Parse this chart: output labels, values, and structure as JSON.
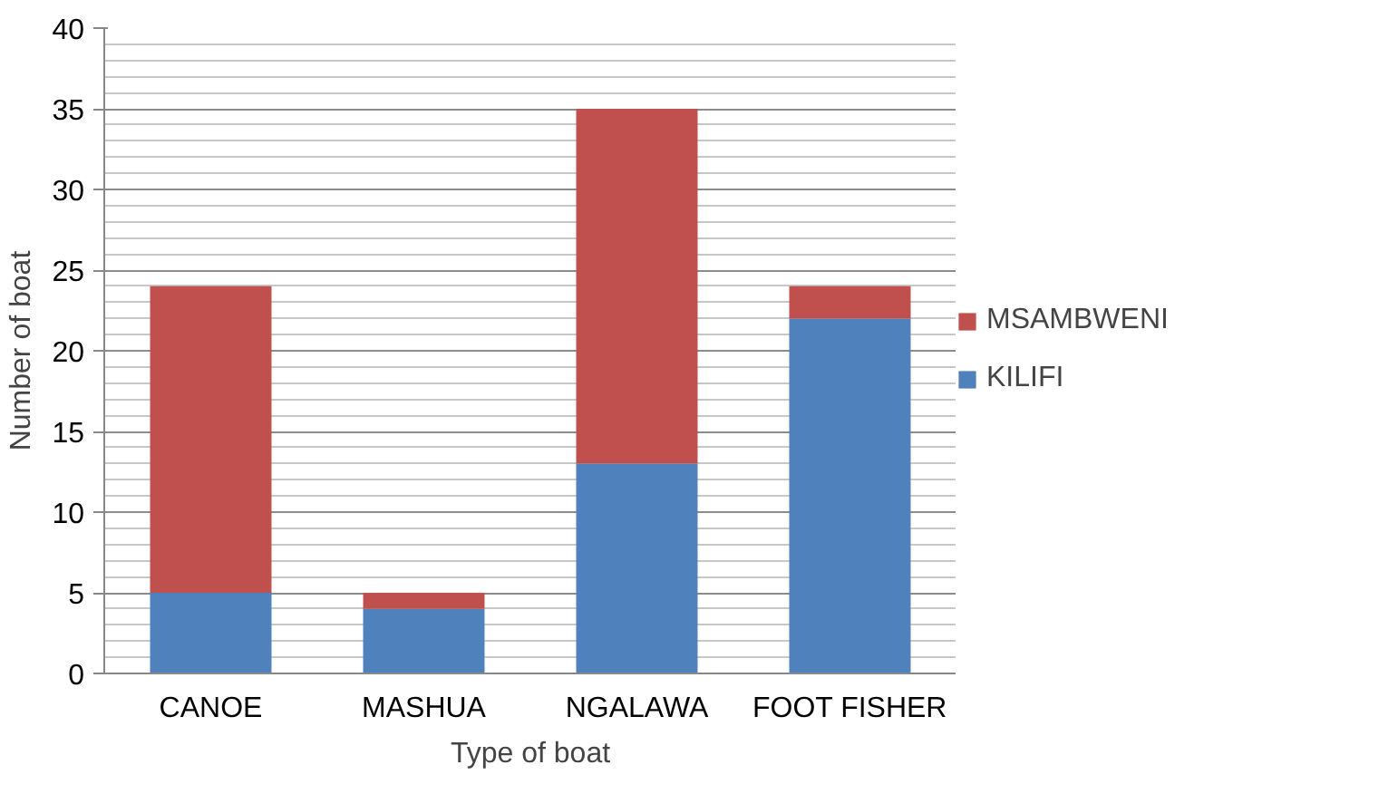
{
  "chart_data": {
    "type": "bar",
    "stacked": true,
    "xlabel": "Type of boat",
    "ylabel": "Number of boat",
    "categories": [
      "CANOE",
      "MASHUA",
      "NGALAWA",
      "FOOT FISHER"
    ],
    "series": [
      {
        "name": "KILIFI",
        "color": "#4f81bd",
        "values": [
          5,
          4,
          13,
          22
        ]
      },
      {
        "name": "MSAMBWENI",
        "color": "#c0504d",
        "values": [
          19,
          1,
          22,
          2
        ]
      }
    ],
    "ylim": [
      0,
      40
    ],
    "yticks": [
      0,
      5,
      10,
      15,
      20,
      25,
      30,
      35,
      40
    ],
    "grid": "y",
    "legend": "right"
  }
}
